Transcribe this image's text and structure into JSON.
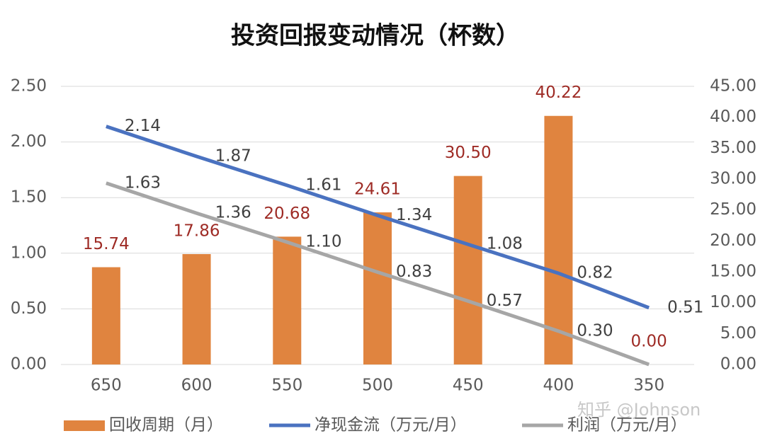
{
  "chart_data": {
    "type": "bar-line",
    "title": "投资回报变动情况（杯数）",
    "watermark": "知乎 @Johnson",
    "categories": [
      "650",
      "600",
      "550",
      "500",
      "450",
      "400",
      "350"
    ],
    "series": [
      {
        "name": "回收周期（月）",
        "type": "bar",
        "axis": "y2",
        "color": "#e0843f",
        "label_color": "#9e2b25",
        "values": [
          15.74,
          17.86,
          20.68,
          24.61,
          30.5,
          40.22,
          0.0
        ],
        "value_labels": [
          "15.74",
          "17.86",
          "20.68",
          "24.61",
          "30.50",
          "40.22",
          "0.00"
        ]
      },
      {
        "name": "净现金流（万元/月）",
        "type": "line",
        "axis": "y",
        "color": "#4a72c0",
        "label_color": "#404040",
        "values": [
          2.14,
          1.87,
          1.61,
          1.34,
          1.08,
          0.82,
          0.51
        ],
        "value_labels": [
          "2.14",
          "1.87",
          "1.61",
          "1.34",
          "1.08",
          "0.82",
          "0.51"
        ]
      },
      {
        "name": "利润（万元/月）",
        "type": "line",
        "axis": "y",
        "color": "#a6a6a6",
        "label_color": "#404040",
        "values": [
          1.63,
          1.36,
          1.1,
          0.83,
          0.57,
          0.3,
          0.0
        ],
        "value_labels": [
          "1.63",
          "1.36",
          "1.10",
          "0.83",
          "0.57",
          "0.30",
          null
        ]
      }
    ],
    "ylim": [
      0,
      2.5
    ],
    "yticks": [
      {
        "value": 0,
        "label": "0.00"
      },
      {
        "value": 0.5,
        "label": "0.50"
      },
      {
        "value": 1,
        "label": "1.00"
      },
      {
        "value": 1.5,
        "label": "1.50"
      },
      {
        "value": 2,
        "label": "2.00"
      },
      {
        "value": 2.5,
        "label": "2.50"
      }
    ],
    "y2lim": [
      0,
      45
    ],
    "y2ticks": [
      {
        "value": 0,
        "label": "0.00"
      },
      {
        "value": 5,
        "label": "5.00"
      },
      {
        "value": 10,
        "label": "10.00"
      },
      {
        "value": 15,
        "label": "15.00"
      },
      {
        "value": 20,
        "label": "20.00"
      },
      {
        "value": 25,
        "label": "25.00"
      },
      {
        "value": 30,
        "label": "30.00"
      },
      {
        "value": 35,
        "label": "35.00"
      },
      {
        "value": 40,
        "label": "40.00"
      },
      {
        "value": 45,
        "label": "45.00"
      }
    ],
    "grid": true
  }
}
